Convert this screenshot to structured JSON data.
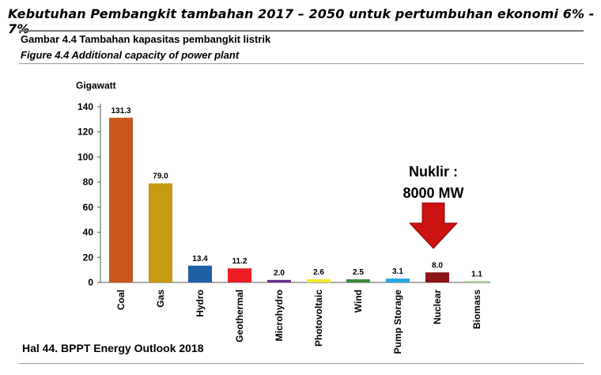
{
  "headline": "Kebutuhan Pembangkit tambahan 2017 – 2050 untuk pertumbuhan ekonomi 6% - 7%",
  "figure": {
    "title_id": "Gambar 4.4 Tambahan kapasitas pembangkit listrik",
    "title_en": "Figure 4.4 Additional capacity of power plant"
  },
  "annotation": {
    "line1": "Nuklir :",
    "line2": "8000 MW",
    "arrow_color": "#cc1111"
  },
  "footer": "Hal 44. BPPT Energy Outlook 2018",
  "chart_data": {
    "type": "bar",
    "ylabel": "Gigawatt",
    "ylim": [
      0,
      140
    ],
    "yticks": [
      "0",
      "20",
      "40",
      "60",
      "80",
      "100",
      "120",
      "140"
    ],
    "grid": false,
    "categories": [
      "Coal",
      "Gas",
      "Hydro",
      "Geothermal",
      "Microhydro",
      "Photovoltaic",
      "Wind",
      "Pump Storage",
      "Nuclear",
      "Biomass"
    ],
    "values": [
      131.3,
      79.0,
      13.4,
      11.2,
      2.0,
      2.6,
      2.5,
      3.1,
      8.0,
      1.1
    ],
    "value_labels": [
      "131.3",
      "79.0",
      "13.4",
      "11.2",
      "2.0",
      "2.6",
      "2.5",
      "3.1",
      "8.0",
      "1.1"
    ],
    "colors": [
      "#c8581b",
      "#c79a13",
      "#1f5fa5",
      "#ee1c24",
      "#6a2d8e",
      "#f3ea2a",
      "#3d8c3a",
      "#26a7e2",
      "#8b1414",
      "#a6d38b"
    ]
  }
}
